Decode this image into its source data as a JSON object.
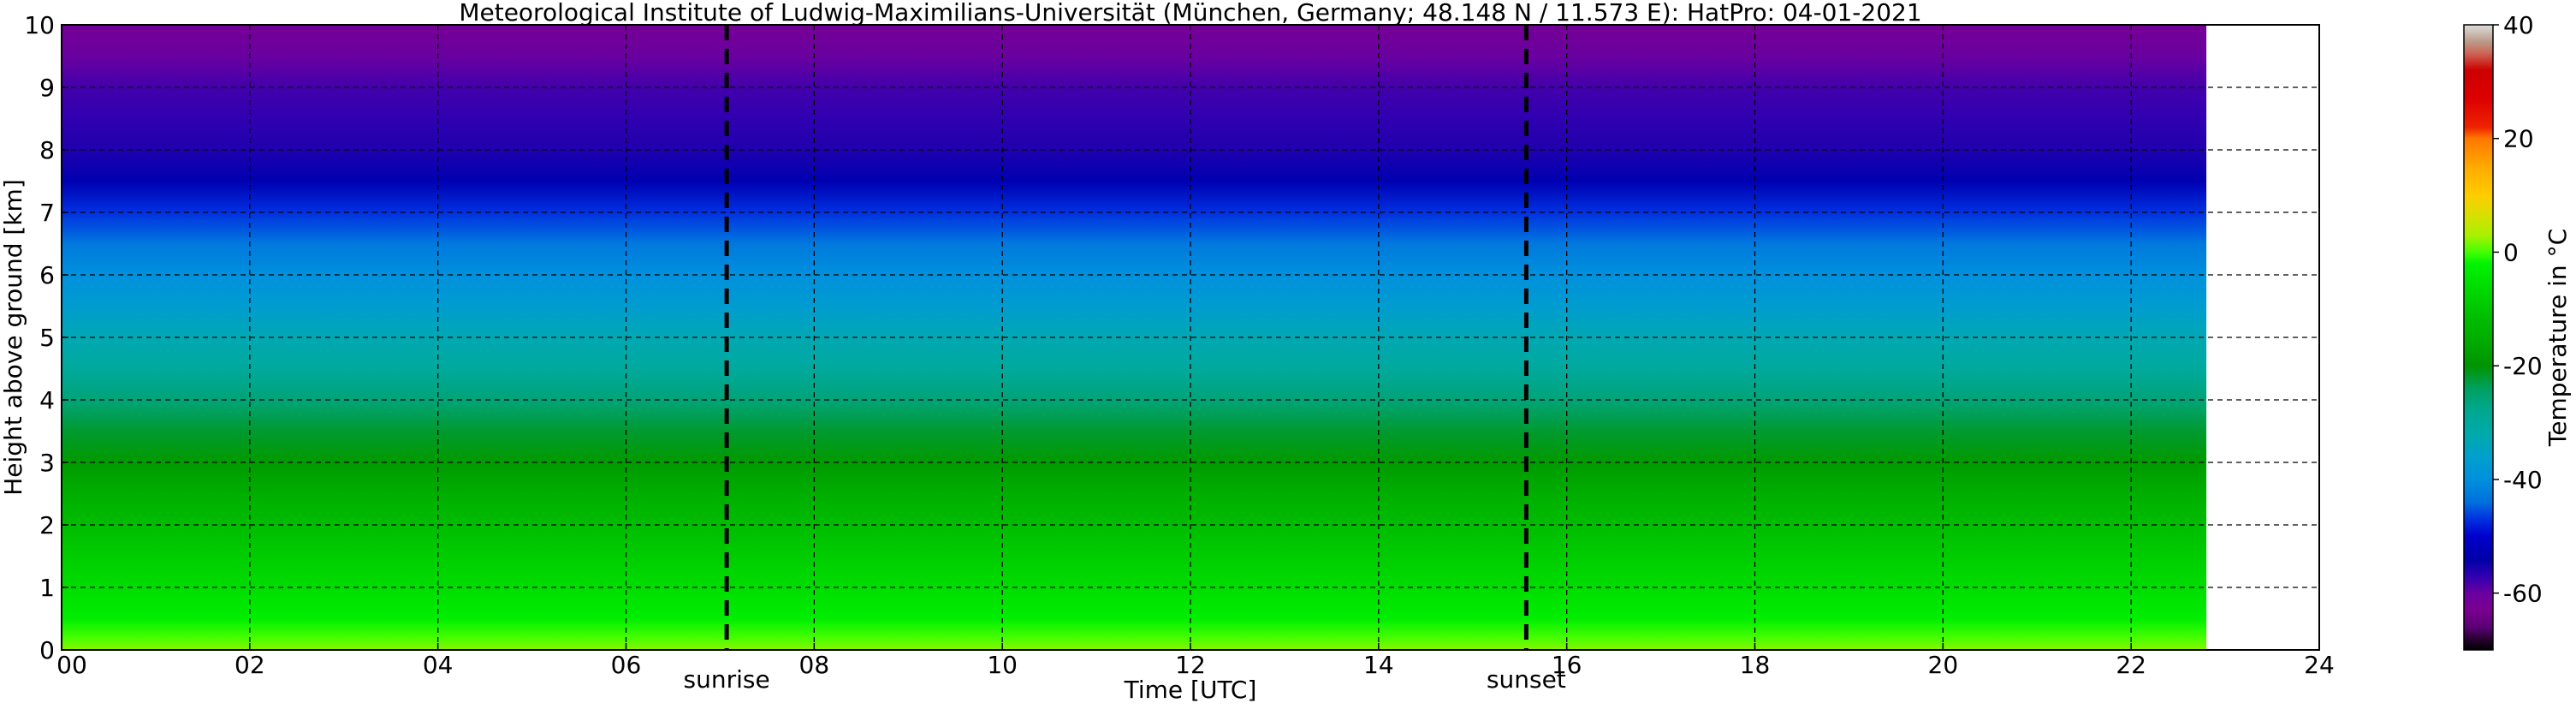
{
  "chart_data": {
    "type": "heatmap",
    "title": "Meteorological Institute of Ludwig-Maximilians-Universität (München, Germany; 48.148 N / 11.573 E):    HatPro: 04-01-2021",
    "xlabel": "Time [UTC]",
    "ylabel": "Height above ground [km]",
    "xlim": [
      0,
      24
    ],
    "ylim": [
      0,
      10
    ],
    "x_ticks": [
      "00",
      "02",
      "04",
      "06",
      "08",
      "10",
      "12",
      "14",
      "16",
      "18",
      "20",
      "22",
      "24"
    ],
    "y_ticks": [
      "0",
      "1",
      "2",
      "3",
      "4",
      "5",
      "6",
      "7",
      "8",
      "9",
      "10"
    ],
    "grid": true,
    "data_end_time": 22.8,
    "markers": [
      {
        "label": "sunrise",
        "time": 7.07
      },
      {
        "label": "sunset",
        "time": 15.57
      }
    ],
    "temperature_profile": {
      "heights_km": [
        0,
        0.2,
        0.5,
        1,
        1.5,
        2,
        2.5,
        3,
        3.5,
        4,
        4.5,
        5,
        5.5,
        6,
        6.5,
        7,
        7.5,
        8,
        8.5,
        9,
        9.5,
        10
      ],
      "temperature_c": [
        2,
        0,
        -3,
        -6,
        -9,
        -12,
        -15,
        -19,
        -22,
        -26,
        -30,
        -33,
        -37,
        -40,
        -43,
        -47,
        -53,
        -56,
        -57,
        -58,
        -60,
        -62
      ]
    },
    "colorbar": {
      "label": "Temperature in °C",
      "range": [
        -70,
        40
      ],
      "ticks": [
        "-60",
        "-40",
        "-20",
        "0",
        "20",
        "40"
      ],
      "tick_values": [
        -60,
        -40,
        -20,
        0,
        20,
        40
      ],
      "colors": [
        {
          "value": -70,
          "color": "#000000"
        },
        {
          "value": -68,
          "color": "#2a0035"
        },
        {
          "value": -66,
          "color": "#5a0075"
        },
        {
          "value": -63,
          "color": "#7a0090"
        },
        {
          "value": -60,
          "color": "#6a00a0"
        },
        {
          "value": -57,
          "color": "#3000b0"
        },
        {
          "value": -54,
          "color": "#0000a8"
        },
        {
          "value": -50,
          "color": "#0000cc"
        },
        {
          "value": -47,
          "color": "#0030e0"
        },
        {
          "value": -44,
          "color": "#0070dd"
        },
        {
          "value": -40,
          "color": "#0090dd"
        },
        {
          "value": -36,
          "color": "#00a0cc"
        },
        {
          "value": -32,
          "color": "#00aaaa"
        },
        {
          "value": -28,
          "color": "#00a890"
        },
        {
          "value": -24,
          "color": "#00a060"
        },
        {
          "value": -20,
          "color": "#009400"
        },
        {
          "value": -16,
          "color": "#00aa00"
        },
        {
          "value": -11,
          "color": "#00c000"
        },
        {
          "value": -6,
          "color": "#00dd00"
        },
        {
          "value": -2,
          "color": "#00f400"
        },
        {
          "value": 0,
          "color": "#44ff00"
        },
        {
          "value": 3,
          "color": "#aaf000"
        },
        {
          "value": 7,
          "color": "#dddd00"
        },
        {
          "value": 10,
          "color": "#ffcc00"
        },
        {
          "value": 15,
          "color": "#ffaa00"
        },
        {
          "value": 20,
          "color": "#ff7700"
        },
        {
          "value": 22,
          "color": "#ee2200"
        },
        {
          "value": 27,
          "color": "#dd0000"
        },
        {
          "value": 32,
          "color": "#cc0000"
        },
        {
          "value": 35,
          "color": "#cc6655"
        },
        {
          "value": 37,
          "color": "#bb9988"
        },
        {
          "value": 40,
          "color": "#dddddd"
        }
      ]
    }
  }
}
